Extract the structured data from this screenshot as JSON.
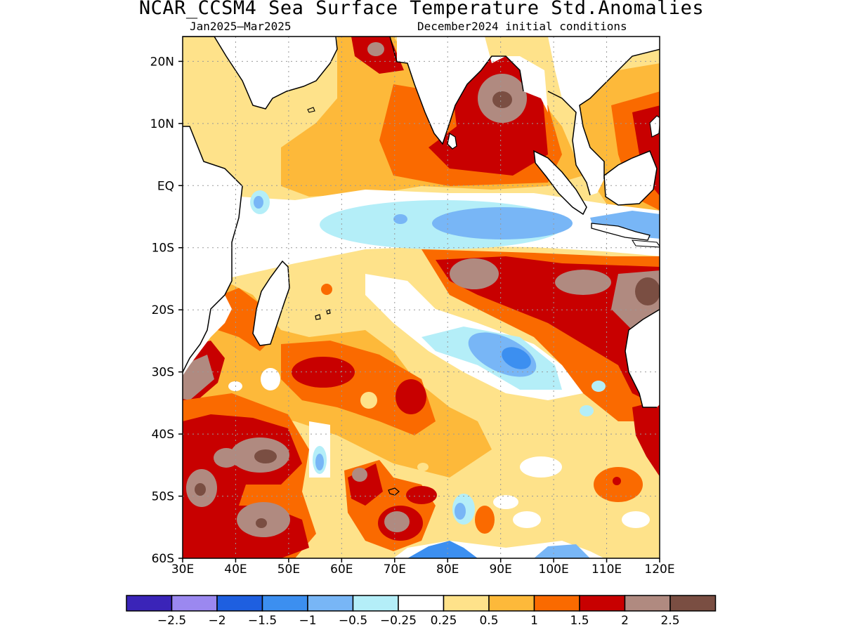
{
  "header": {
    "title": "NCAR_CCSM4 Sea Surface Temperature Std.Anomalies",
    "period": "Jan2025–Mar2025",
    "init": "December2024 initial conditions"
  },
  "map": {
    "lat_labels": [
      "20N",
      "10N",
      "EQ",
      "10S",
      "20S",
      "30S",
      "40S",
      "50S",
      "60S"
    ],
    "lon_labels": [
      "30E",
      "40E",
      "50E",
      "60E",
      "70E",
      "80E",
      "90E",
      "100E",
      "110E",
      "120E"
    ],
    "lat_values": [
      20,
      10,
      0,
      -10,
      -20,
      -30,
      -40,
      -50,
      -60
    ],
    "lon_values": [
      30,
      40,
      50,
      60,
      70,
      80,
      90,
      100,
      110,
      120
    ],
    "extent": {
      "lon": [
        30,
        120
      ],
      "lat": [
        -60,
        24
      ]
    },
    "grid": "dotted"
  },
  "colorbar": {
    "colors": [
      "#3a24b8",
      "#9b88f0",
      "#1e5fe0",
      "#3c8ff0",
      "#78b6f6",
      "#b4eef8",
      "#ffffff",
      "#fee28a",
      "#fdb93a",
      "#fa6a00",
      "#c80000",
      "#b08a80",
      "#7a4e42"
    ],
    "labels": [
      "−2.5",
      "−2",
      "−1.5",
      "−1",
      "−0.5",
      "−0.25",
      "0.25",
      "0.5",
      "1",
      "1.5",
      "2",
      "2.5"
    ]
  }
}
